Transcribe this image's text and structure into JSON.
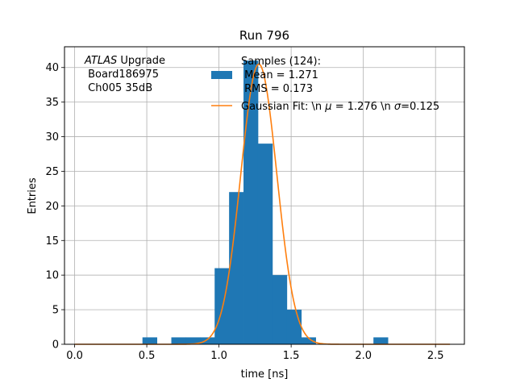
{
  "chart_data": {
    "type": "bar",
    "title": "Run 796",
    "xlabel": "time [ns]",
    "ylabel": "Entries",
    "xlim": [
      -0.07,
      2.7
    ],
    "ylim": [
      0,
      43
    ],
    "xticks": [
      0.0,
      0.5,
      1.0,
      1.5,
      2.0,
      2.5
    ],
    "xtick_labels": [
      "0.0",
      "0.5",
      "1.0",
      "1.5",
      "2.0",
      "2.5"
    ],
    "yticks": [
      0,
      5,
      10,
      15,
      20,
      25,
      30,
      35,
      40
    ],
    "ytick_labels": [
      "0",
      "5",
      "10",
      "15",
      "20",
      "25",
      "30",
      "35",
      "40"
    ],
    "grid": true,
    "annotation": {
      "lines": [
        "ATLAS Upgrade",
        " Board186975",
        " Ch005 35dB"
      ],
      "italic_word": "ATLAS",
      "rest_of_first_line": " Upgrade"
    },
    "histogram": {
      "name_lines": [
        "Samples (124):",
        " Mean = 1.271",
        " RMS = 0.173"
      ],
      "color": "#1f77b4",
      "bin_edges": [
        0.47,
        0.57,
        0.67,
        0.77,
        0.87,
        0.97,
        1.07,
        1.17,
        1.27,
        1.37,
        1.47,
        1.57,
        1.67,
        1.77,
        1.87,
        1.97,
        2.07,
        2.17
      ],
      "counts": [
        1,
        0,
        1,
        1,
        1,
        11,
        22,
        41,
        29,
        10,
        5,
        1,
        0,
        0,
        0,
        0,
        1
      ]
    },
    "fit": {
      "name": "Gaussian Fit: \\n $\\mu$ = 1.276 \\n $\\sigma$=0.125",
      "label_prefix": "Gaussian Fit: \\n ",
      "mu_symbol": "μ",
      "mu_text": " = 1.276 \\n ",
      "sigma_symbol": "σ",
      "sigma_text": "=0.125",
      "color": "#ff7f0e",
      "mu": 1.276,
      "sigma": 0.125,
      "amplitude": 40.5,
      "x_range": [
        0.0,
        2.6
      ]
    },
    "legend_placement": "upper center"
  }
}
